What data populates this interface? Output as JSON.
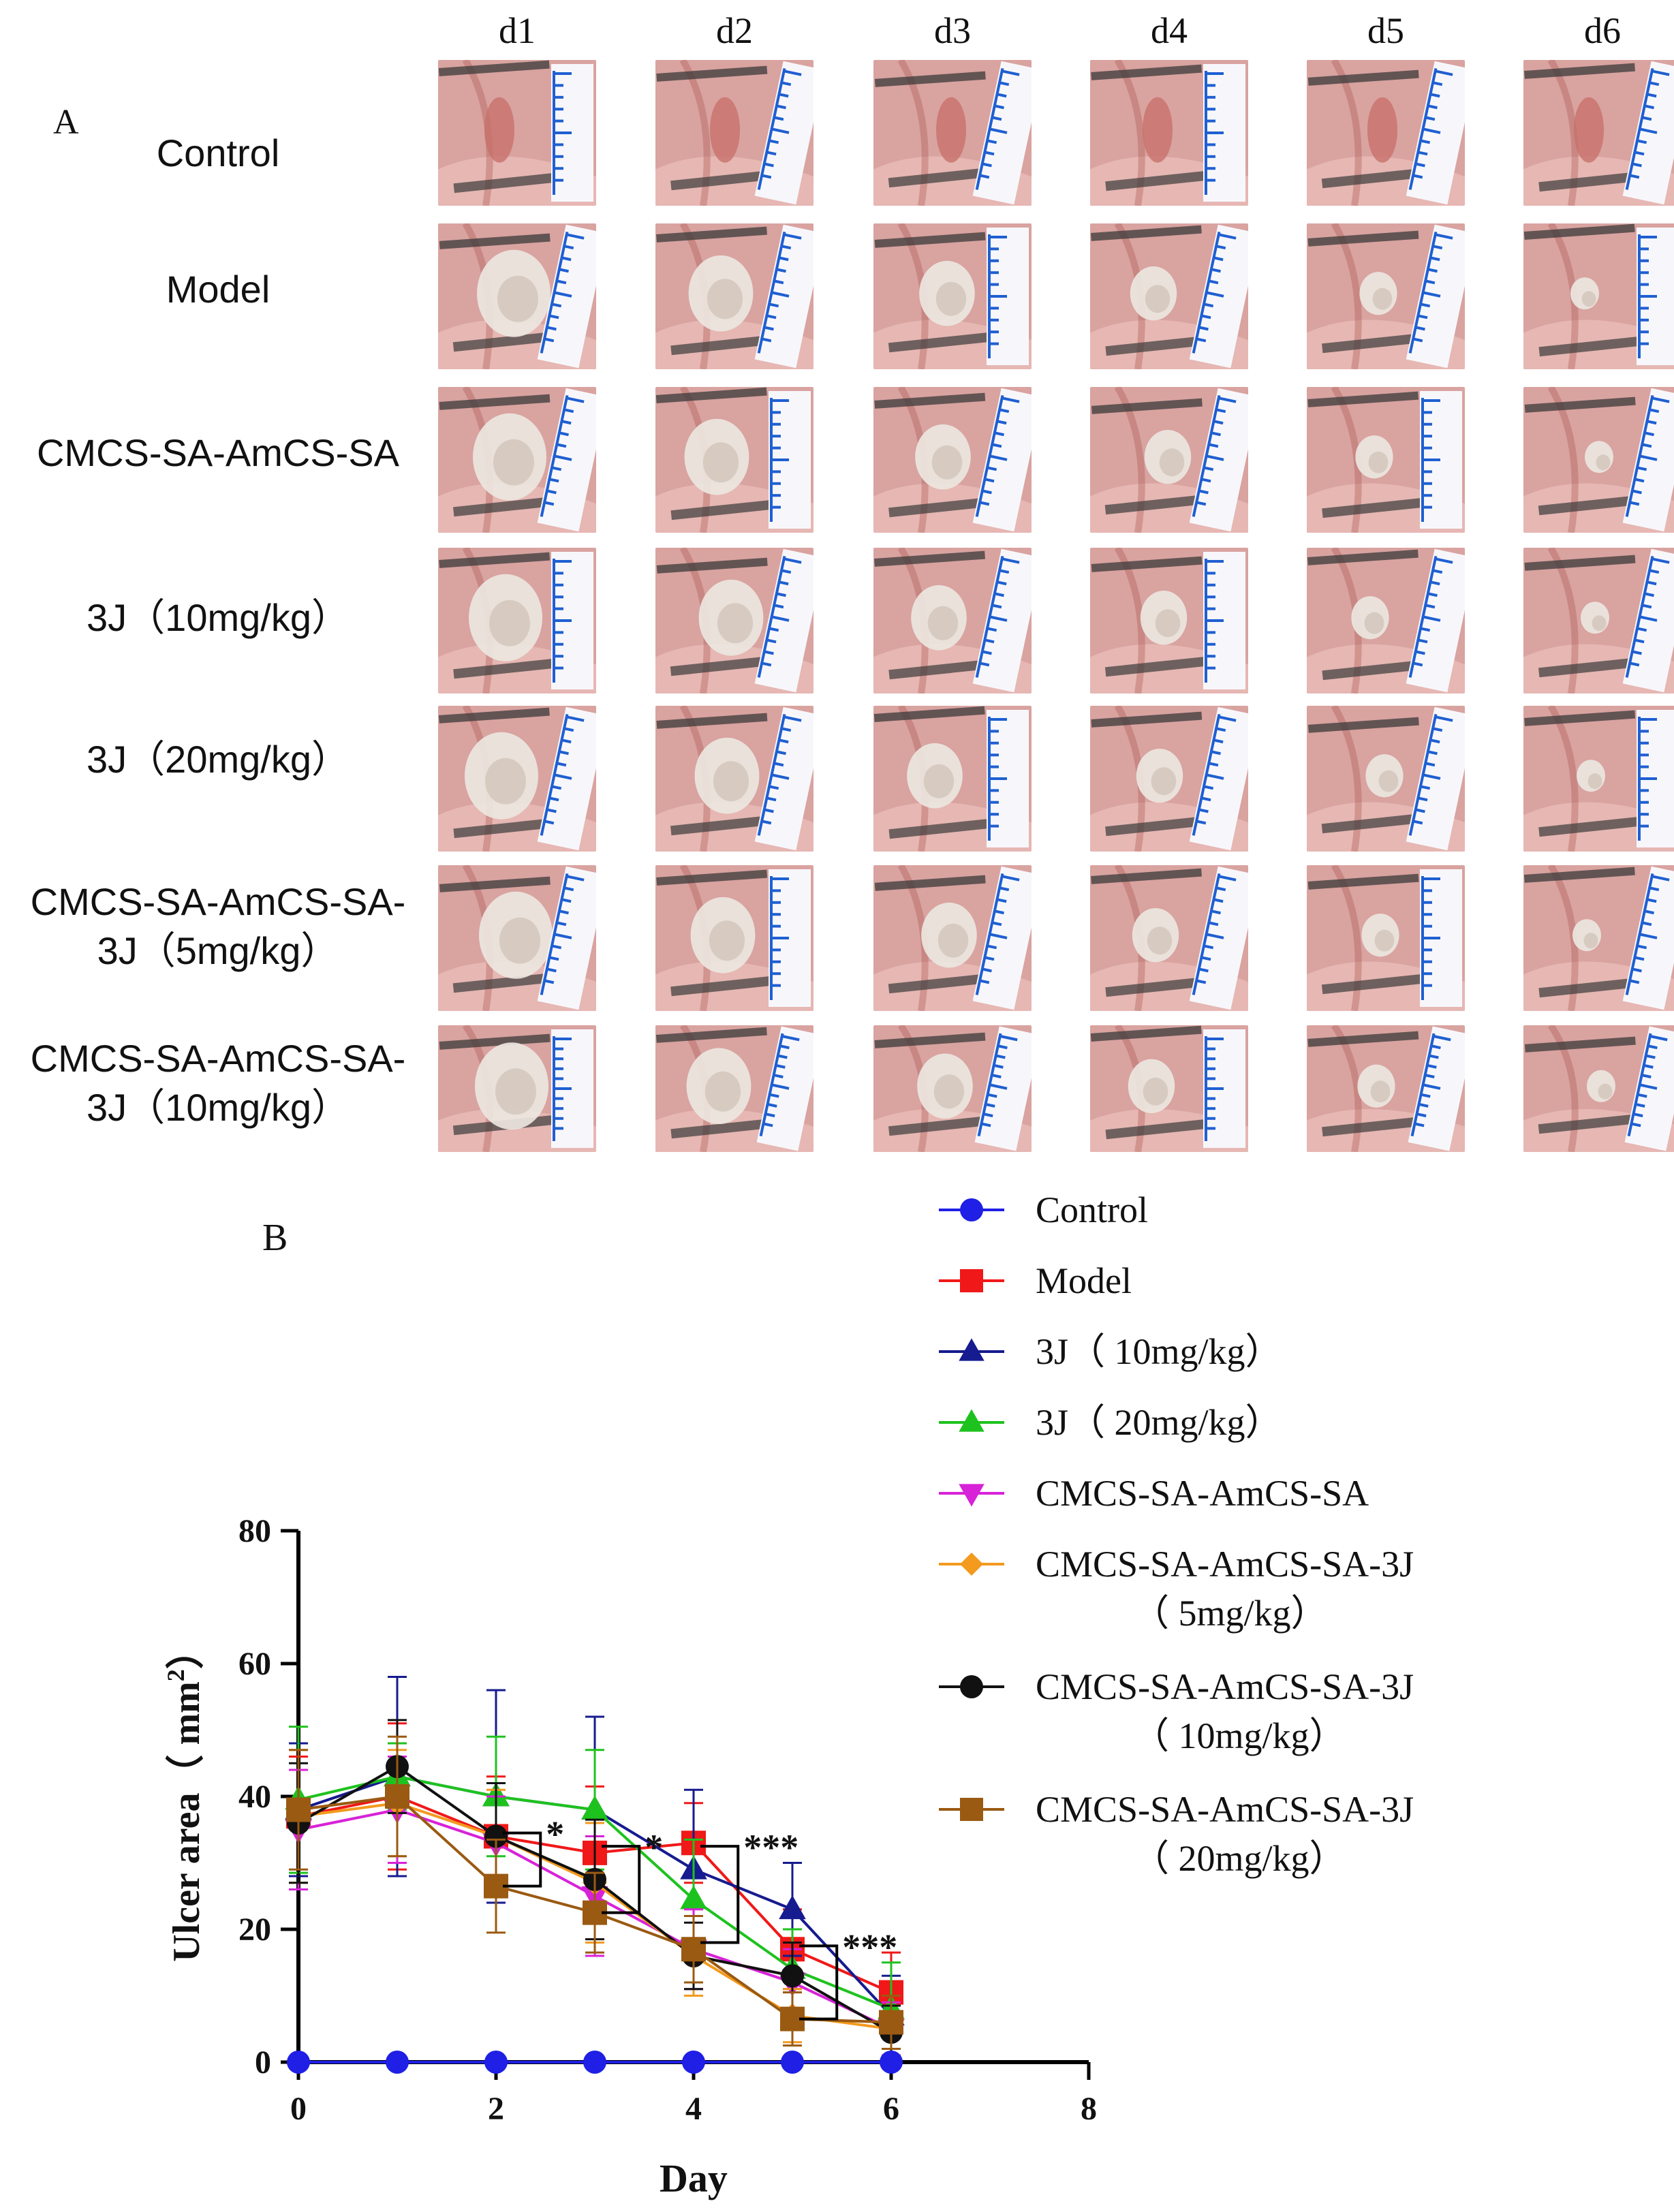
{
  "panel_a": {
    "letter": "A",
    "day_labels": [
      "d1",
      "d2",
      "d3",
      "d4",
      "d5",
      "d6"
    ],
    "rows": [
      {
        "lines": [
          "Control"
        ],
        "ulcer": 0
      },
      {
        "lines": [
          "Model"
        ],
        "ulcer": 1
      },
      {
        "lines": [
          "CMCS-SA-AmCS-SA"
        ],
        "ulcer": 1
      },
      {
        "lines": [
          "3J（10mg/kg）"
        ],
        "ulcer": 1
      },
      {
        "lines": [
          "3J（20mg/kg）"
        ],
        "ulcer": 1
      },
      {
        "lines": [
          "CMCS-SA-AmCS-SA-",
          "3J（5mg/kg）"
        ],
        "ulcer": 1
      },
      {
        "lines": [
          "CMCS-SA-AmCS-SA-",
          "3J（10mg/kg）"
        ],
        "ulcer": 1
      }
    ],
    "colors": {
      "tissue": "#d9a3a0",
      "tissue_dark": "#a8524e",
      "ulcer": "#ece6e0",
      "ruler": "#f7f7fb",
      "ruler_tick": "#1f5fd1",
      "tool": "#3a3a3a"
    }
  },
  "chart_data": {
    "type": "line",
    "panel_letter": "B",
    "xlabel": "Day",
    "ylabel": "Ulcer area（ mm",
    "ylabel_sup": "2",
    "ylabel_close": "）",
    "xlim": [
      0,
      8
    ],
    "ylim": [
      0,
      80
    ],
    "xticks": [
      0,
      2,
      4,
      6,
      8
    ],
    "yticks": [
      0,
      20,
      40,
      60,
      80
    ],
    "x": [
      0,
      1,
      2,
      3,
      4,
      5,
      6
    ],
    "series": [
      {
        "name": "Control",
        "legend_lines": [
          "Control"
        ],
        "color": "#1f1fe6",
        "marker": "circle",
        "values": [
          0,
          0,
          0,
          0,
          0,
          0,
          0
        ],
        "err": [
          0,
          0,
          0,
          0,
          0,
          0,
          0
        ]
      },
      {
        "name": "Model",
        "legend_lines": [
          "Model"
        ],
        "color": "#f01818",
        "marker": "square",
        "values": [
          37,
          40,
          34,
          31.5,
          33,
          17,
          10.5
        ],
        "err": [
          9,
          11,
          9,
          10,
          6,
          6,
          6
        ]
      },
      {
        "name": "3J（ 10mg/kg）",
        "legend_lines": [
          "3J（ 10mg/kg）"
        ],
        "color": "#161b8f",
        "marker": "triangle-up",
        "values": [
          38,
          43,
          40,
          38,
          29,
          23,
          7
        ],
        "err": [
          10,
          15,
          16,
          14,
          12,
          7,
          6
        ]
      },
      {
        "name": "3J（ 20mg/kg）",
        "legend_lines": [
          "3J（ 20mg/kg）"
        ],
        "color": "#1ec21e",
        "marker": "triangle-up",
        "values": [
          39.5,
          43,
          40,
          38,
          24.5,
          14,
          8
        ],
        "err": [
          11,
          5,
          9,
          9,
          9,
          6,
          7
        ]
      },
      {
        "name": "CMCS-SA-AmCS-SA",
        "legend_lines": [
          "CMCS-SA-AmCS-SA"
        ],
        "color": "#d822d8",
        "marker": "triangle-down",
        "values": [
          35,
          38,
          33,
          25,
          17,
          12,
          5
        ],
        "err": [
          9,
          8,
          7,
          9,
          6,
          5,
          4
        ]
      },
      {
        "name": "CMCS-SA-AmCS-SA-3J（ 5mg/kg）",
        "legend_lines": [
          "CMCS-SA-AmCS-SA-3J",
          "（ 5mg/kg）"
        ],
        "color": "#f39a1f",
        "marker": "diamond",
        "values": [
          37,
          39,
          34,
          27,
          16,
          7,
          5
        ],
        "err": [
          10,
          8,
          7,
          9,
          6,
          4,
          5
        ]
      },
      {
        "name": "CMCS-SA-AmCS-SA-3J（ 10mg/kg）",
        "legend_lines": [
          "CMCS-SA-AmCS-SA-3J",
          "（ 10mg/kg）"
        ],
        "color": "#111111",
        "marker": "circle",
        "values": [
          36,
          44.5,
          34,
          27.5,
          16,
          13,
          4.5
        ],
        "err": [
          9,
          7,
          8,
          9,
          5,
          5,
          4
        ]
      },
      {
        "name": "CMCS-SA-AmCS-SA-3J（ 20mg/kg）",
        "legend_lines": [
          "CMCS-SA-AmCS-SA-3J",
          "（ 20mg/kg）"
        ],
        "color": "#9a5a12",
        "marker": "square",
        "values": [
          38,
          40,
          26.5,
          22.5,
          17,
          6.5,
          6
        ],
        "err": [
          9,
          9,
          7,
          6,
          5,
          4,
          4
        ]
      }
    ],
    "significance": [
      {
        "label": "*",
        "x": 2,
        "y_top": 34.5,
        "y_bottom": 26.5
      },
      {
        "label": "*",
        "x": 3,
        "y_top": 32.5,
        "y_bottom": 22.5
      },
      {
        "label": "***",
        "x": 4,
        "y_top": 32.5,
        "y_bottom": 18
      },
      {
        "label": "***",
        "x": 5,
        "y_top": 17.5,
        "y_bottom": 6.5
      }
    ]
  }
}
